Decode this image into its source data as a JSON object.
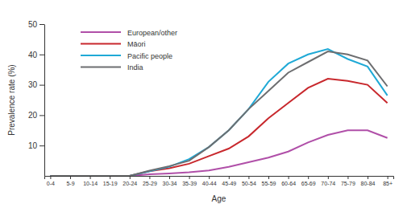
{
  "chart_data": {
    "type": "line",
    "x_label": "Age",
    "y_label": "Prevalence rate (%)",
    "categories": [
      "0-4",
      "5-9",
      "10-14",
      "15-19",
      "20-24",
      "25-29",
      "30-34",
      "35-39",
      "40-44",
      "45-49",
      "50-54",
      "55-59",
      "60-64",
      "65-69",
      "70-74",
      "75-79",
      "80-84",
      "85+"
    ],
    "series": [
      {
        "name": "European/other",
        "color": "#b04fa8",
        "values": [
          0,
          0,
          0,
          0,
          0,
          0.5,
          0.8,
          1.2,
          1.8,
          3,
          4.5,
          6,
          8,
          11,
          13.5,
          15,
          15,
          12.5
        ]
      },
      {
        "name": "Māori",
        "color": "#c8282d",
        "values": [
          0,
          0,
          0,
          0,
          0,
          1.5,
          2.5,
          4,
          6.5,
          9,
          13,
          19,
          24,
          29,
          32,
          31.3,
          30,
          24
        ]
      },
      {
        "name": "Pacific people",
        "color": "#1fa9d6",
        "values": [
          0,
          0,
          0,
          0,
          0,
          1.5,
          3,
          5.5,
          9.5,
          15,
          22,
          31,
          37,
          40,
          41.8,
          38.5,
          36,
          26.5
        ]
      },
      {
        "name": "India",
        "color": "#6d6e70",
        "values": [
          0,
          0,
          0,
          0,
          0,
          1.7,
          3.2,
          5,
          9.5,
          15,
          22,
          28,
          34,
          37.5,
          41,
          40,
          38,
          29.5
        ]
      }
    ],
    "ylim": [
      0,
      50
    ],
    "yticks": [
      10,
      20,
      30,
      40,
      50
    ],
    "grid": false,
    "legend": "top-left"
  }
}
